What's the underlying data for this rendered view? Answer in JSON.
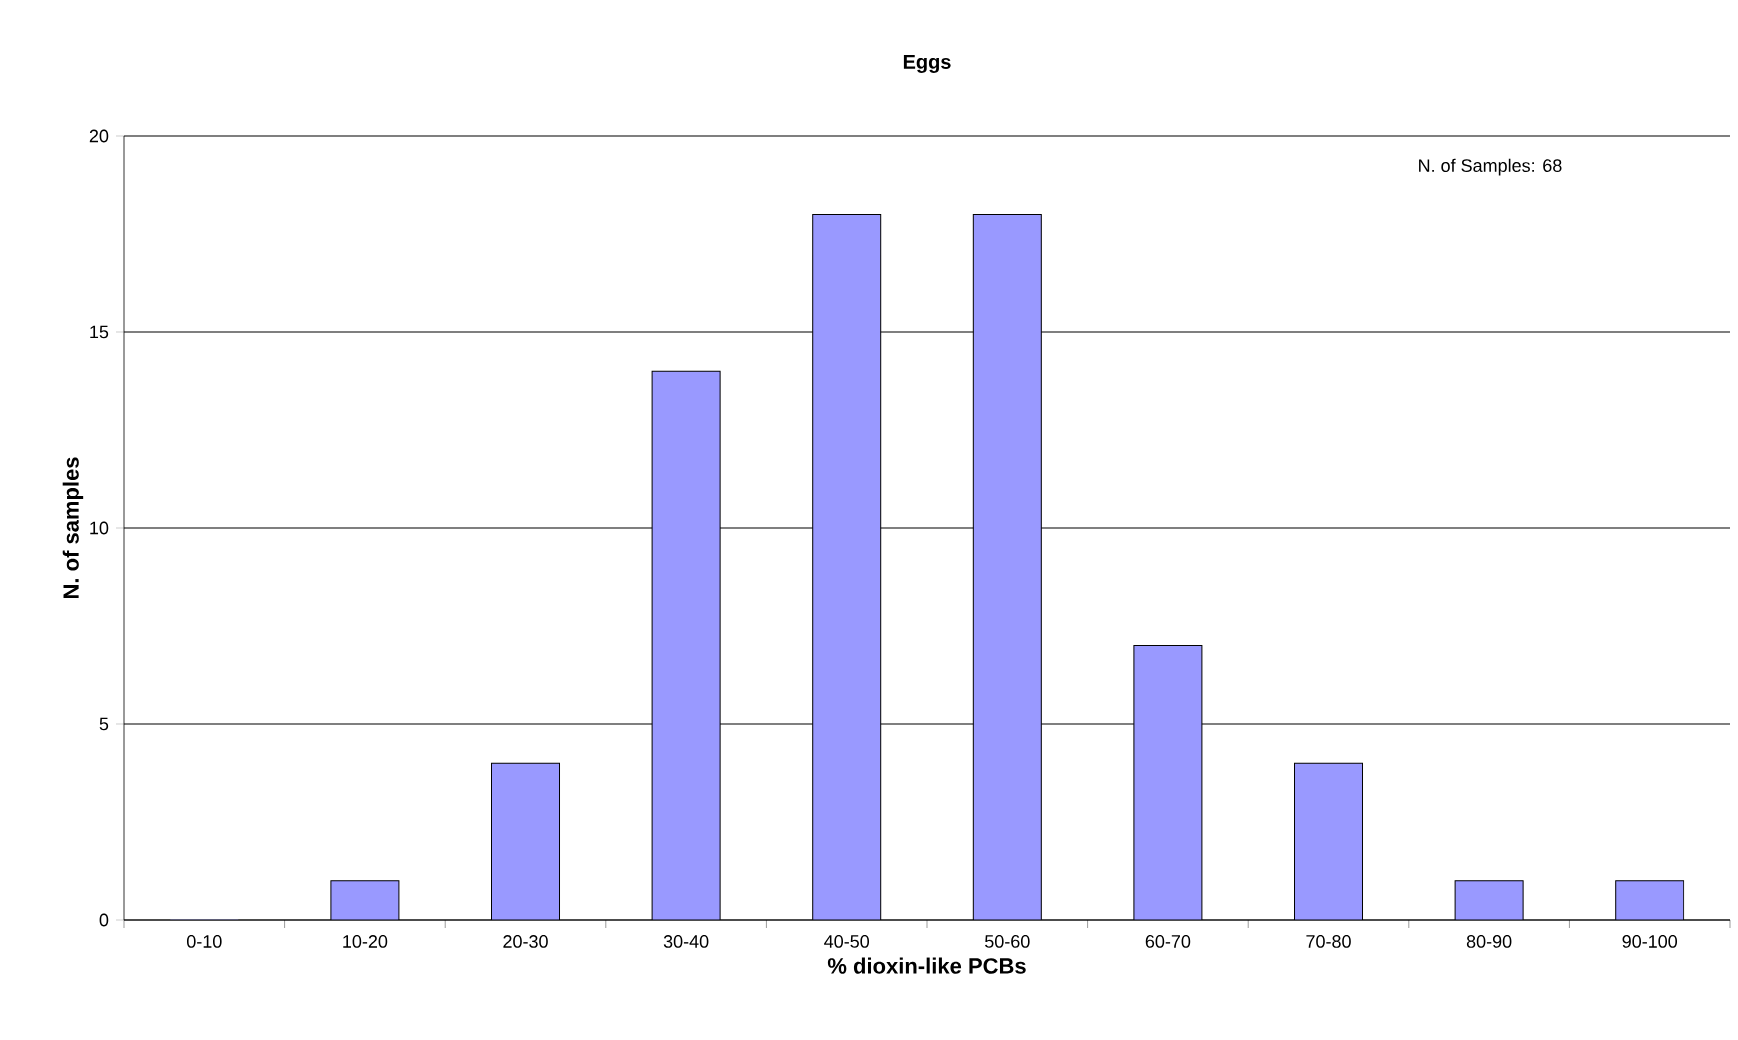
{
  "chart_data": {
    "type": "bar",
    "title": "Eggs",
    "xlabel": "% dioxin-like PCBs",
    "ylabel": "N. of samples",
    "categories": [
      "0-10",
      "10-20",
      "20-30",
      "30-40",
      "40-50",
      "50-60",
      "60-70",
      "70-80",
      "80-90",
      "90-100"
    ],
    "values": [
      0,
      1,
      4,
      14,
      18,
      18,
      7,
      4,
      1,
      1
    ],
    "color": "#9999ff",
    "ylim": [
      0,
      20
    ],
    "yticks": [
      0,
      5,
      10,
      15,
      20
    ],
    "grid": "y",
    "annotations": [
      "N. of Samples: 68"
    ]
  }
}
